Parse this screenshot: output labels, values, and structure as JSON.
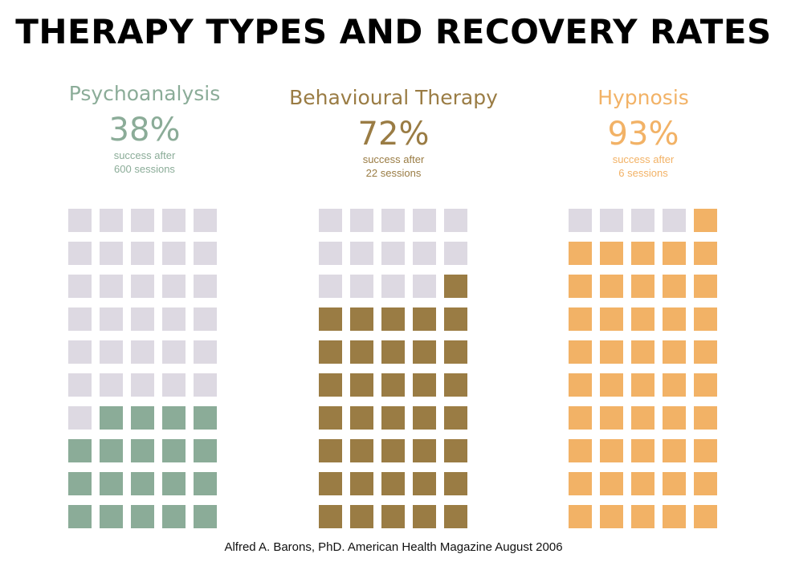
{
  "title": "THERAPY TYPES AND RECOVERY RATES",
  "source": "Alfred A. Barons, PhD. American Health Magazine August 2006",
  "colors": {
    "empty": "#ddd9e2"
  },
  "panels": [
    {
      "name": "Psychoanalysis",
      "percent": "38%",
      "sub1": "success after",
      "sub2": "600 sessions",
      "color": "#8bac98",
      "filled_cells": 19,
      "total_cells": 50
    },
    {
      "name": "Behavioural Therapy",
      "percent": "72%",
      "sub1": "success after",
      "sub2": "22 sessions",
      "color": "#9a7c44",
      "filled_cells": 36,
      "total_cells": 50
    },
    {
      "name": "Hypnosis",
      "percent": "93%",
      "sub1": "success after",
      "sub2": "6 sessions",
      "color": "#f2b266",
      "filled_cells": 46,
      "total_cells": 50
    }
  ],
  "chart_data": [
    {
      "type": "waffle",
      "category": "Psychoanalysis",
      "value": 38,
      "unit": "%",
      "sessions": 600,
      "filled_cells": 19,
      "total_cells": 50
    },
    {
      "type": "waffle",
      "category": "Behavioural Therapy",
      "value": 72,
      "unit": "%",
      "sessions": 22,
      "filled_cells": 36,
      "total_cells": 50
    },
    {
      "type": "waffle",
      "category": "Hypnosis",
      "value": 93,
      "unit": "%",
      "sessions": 6,
      "filled_cells": 46,
      "total_cells": 50
    }
  ]
}
